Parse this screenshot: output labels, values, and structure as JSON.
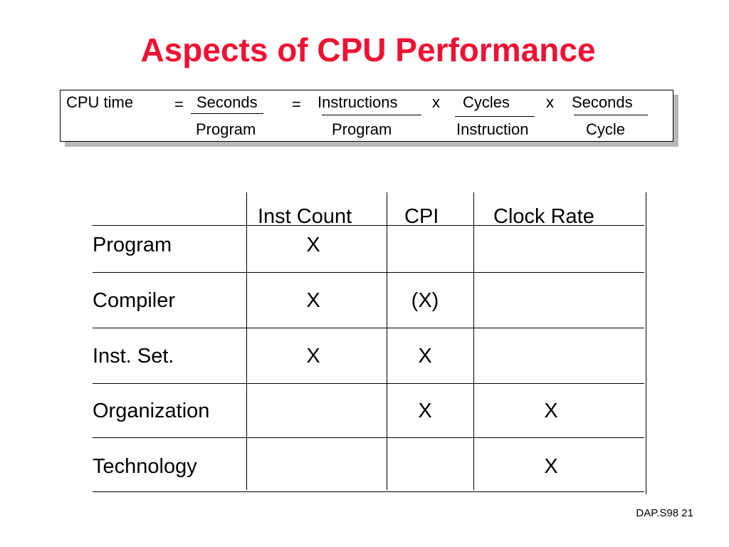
{
  "title": "Aspects of CPU Performance",
  "formula": {
    "lhs": "CPU time",
    "eq1": "=",
    "eq2": "=",
    "op1": "x",
    "op2": "x",
    "terms": [
      {
        "numerator": "Seconds",
        "denominator": "Program"
      },
      {
        "numerator": "Instructions",
        "denominator": "Program"
      },
      {
        "numerator": "Cycles",
        "denominator": "Instruction"
      },
      {
        "numerator": "Seconds",
        "denominator": "Cycle"
      }
    ]
  },
  "table": {
    "headers": [
      "Inst Count",
      "CPI",
      "Clock Rate"
    ],
    "rows": [
      {
        "label": "Program",
        "cells": [
          "X",
          "",
          ""
        ]
      },
      {
        "label": "Compiler",
        "cells": [
          "X",
          "(X)",
          ""
        ]
      },
      {
        "label": "Inst. Set.",
        "cells": [
          "X",
          "X",
          ""
        ]
      },
      {
        "label": "Organization",
        "cells": [
          "",
          "X",
          "X"
        ]
      },
      {
        "label": "Technology",
        "cells": [
          "",
          "",
          "X"
        ]
      }
    ]
  },
  "footer": "DAP.S98 21",
  "colors": {
    "title": "#ee1133",
    "text": "#000000",
    "box_shadow": "#b8b8b8"
  }
}
